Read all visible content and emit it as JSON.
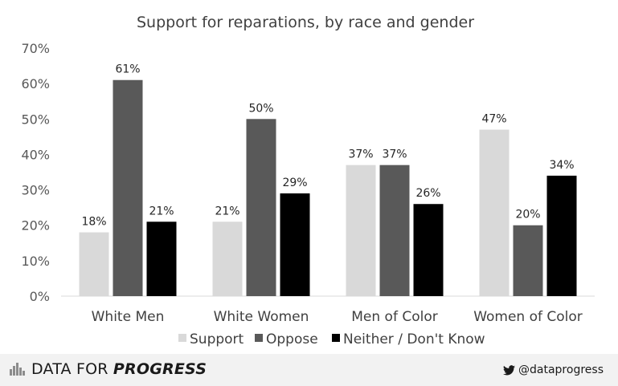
{
  "chart_data": {
    "type": "bar",
    "title": "Support for reparations,  by race and gender",
    "categories": [
      "White Men",
      "White Women",
      "Men of Color",
      "Women of Color"
    ],
    "series": [
      {
        "name": "Support",
        "color": "#d9d9d9",
        "values": [
          18,
          21,
          37,
          47
        ],
        "labels": [
          "18%",
          "21%",
          "37%",
          "47%"
        ]
      },
      {
        "name": "Oppose",
        "color": "#595959",
        "values": [
          61,
          50,
          37,
          20
        ],
        "labels": [
          "61%",
          "50%",
          "37%",
          "20%"
        ]
      },
      {
        "name": "Neither / Don't Know",
        "color": "#000000",
        "values": [
          21,
          29,
          26,
          34
        ],
        "labels": [
          "21%",
          "29%",
          "26%",
          "34%"
        ]
      }
    ],
    "ylim": [
      0,
      70
    ],
    "yticks": [
      0,
      10,
      20,
      30,
      40,
      50,
      60,
      70
    ],
    "ytick_labels": [
      "0%",
      "10%",
      "20%",
      "30%",
      "40%",
      "50%",
      "60%",
      "70%"
    ],
    "xlabel": "",
    "ylabel": "",
    "grid": false,
    "legend_position": "bottom"
  },
  "footer": {
    "brand_prefix": "DATA FOR ",
    "brand_emphasis": "PROGRESS",
    "handle": "@dataprogress"
  }
}
